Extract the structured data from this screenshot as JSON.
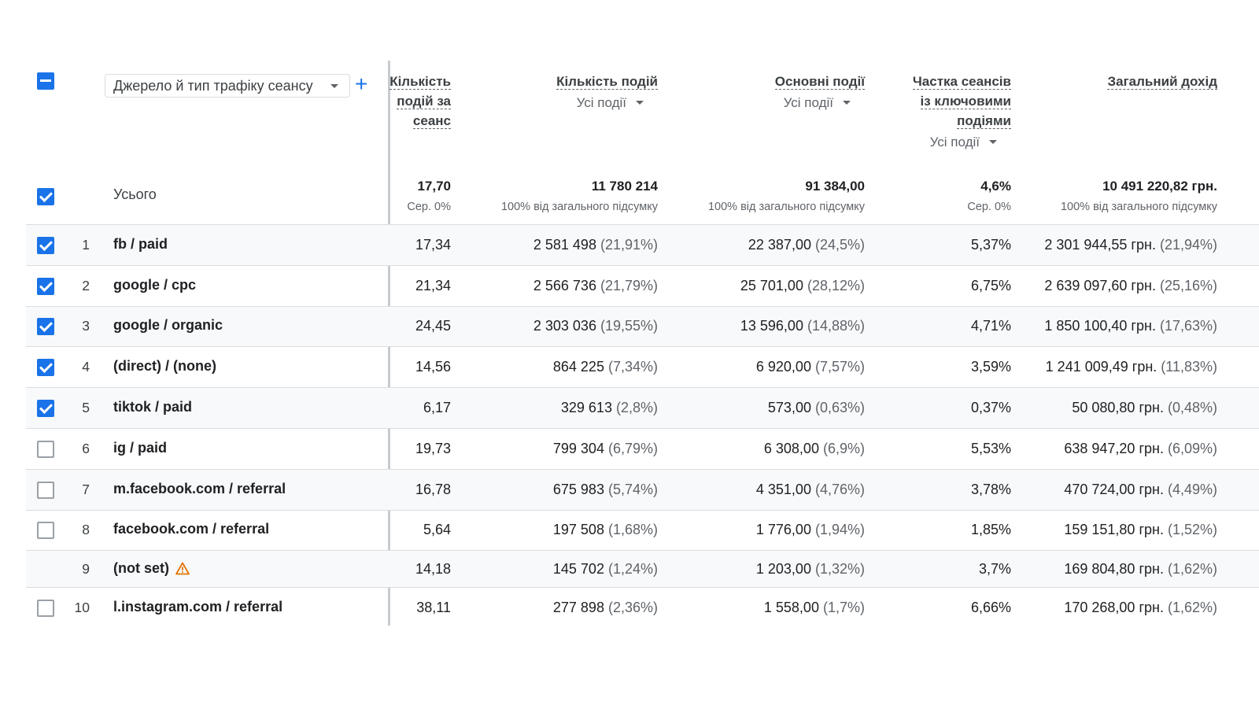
{
  "dimension": {
    "label": "Джерело й тип трафіку сеансу"
  },
  "columns": [
    {
      "title_lines": [
        "Кількість",
        "подій за",
        "сеанс"
      ],
      "sub": ""
    },
    {
      "title_lines": [
        "Кількість подій"
      ],
      "sub": "Усі події"
    },
    {
      "title_lines": [
        "Основні події"
      ],
      "sub": "Усі події"
    },
    {
      "title_lines": [
        "Частка сеансів",
        "із ключовими",
        "подіями"
      ],
      "sub": "Усі події"
    },
    {
      "title_lines": [
        "Загальний дохід"
      ],
      "sub": ""
    }
  ],
  "totals": {
    "label": "Усього",
    "values": [
      {
        "v": "17,70",
        "s": "Сер. 0%"
      },
      {
        "v": "11 780 214",
        "s": "100% від загального підсумку"
      },
      {
        "v": "91 384,00",
        "s": "100% від загального підсумку"
      },
      {
        "v": "4,6%",
        "s": "Сер. 0%"
      },
      {
        "v": "10 491 220,82 грн.",
        "s": "100% від загального підсумку"
      }
    ]
  },
  "rows": [
    {
      "n": "1",
      "name": "fb / paid",
      "checked": true,
      "warn": false,
      "c": [
        [
          "17,34",
          ""
        ],
        [
          "2 581 498",
          "(21,91%)"
        ],
        [
          "22 387,00",
          "(24,5%)"
        ],
        [
          "5,37%",
          ""
        ],
        [
          "2 301 944,55 грн.",
          "(21,94%)"
        ]
      ]
    },
    {
      "n": "2",
      "name": "google / cpc",
      "checked": true,
      "warn": false,
      "c": [
        [
          "21,34",
          ""
        ],
        [
          "2 566 736",
          "(21,79%)"
        ],
        [
          "25 701,00",
          "(28,12%)"
        ],
        [
          "6,75%",
          ""
        ],
        [
          "2 639 097,60 грн.",
          "(25,16%)"
        ]
      ]
    },
    {
      "n": "3",
      "name": "google / organic",
      "checked": true,
      "warn": false,
      "c": [
        [
          "24,45",
          ""
        ],
        [
          "2 303 036",
          "(19,55%)"
        ],
        [
          "13 596,00",
          "(14,88%)"
        ],
        [
          "4,71%",
          ""
        ],
        [
          "1 850 100,40 грн.",
          "(17,63%)"
        ]
      ]
    },
    {
      "n": "4",
      "name": "(direct) / (none)",
      "checked": true,
      "warn": false,
      "c": [
        [
          "14,56",
          ""
        ],
        [
          "864 225",
          "(7,34%)"
        ],
        [
          "6 920,00",
          "(7,57%)"
        ],
        [
          "3,59%",
          ""
        ],
        [
          "1 241 009,49 грн.",
          "(11,83%)"
        ]
      ]
    },
    {
      "n": "5",
      "name": "tiktok / paid",
      "checked": true,
      "warn": false,
      "c": [
        [
          "6,17",
          ""
        ],
        [
          "329 613",
          "(2,8%)"
        ],
        [
          "573,00",
          "(0,63%)"
        ],
        [
          "0,37%",
          ""
        ],
        [
          "50 080,80 грн.",
          "(0,48%)"
        ]
      ]
    },
    {
      "n": "6",
      "name": "ig / paid",
      "checked": false,
      "warn": false,
      "c": [
        [
          "19,73",
          ""
        ],
        [
          "799 304",
          "(6,79%)"
        ],
        [
          "6 308,00",
          "(6,9%)"
        ],
        [
          "5,53%",
          ""
        ],
        [
          "638 947,20 грн.",
          "(6,09%)"
        ]
      ]
    },
    {
      "n": "7",
      "name": "m.facebook.com / referral",
      "checked": false,
      "warn": false,
      "c": [
        [
          "16,78",
          ""
        ],
        [
          "675 983",
          "(5,74%)"
        ],
        [
          "4 351,00",
          "(4,76%)"
        ],
        [
          "3,78%",
          ""
        ],
        [
          "470 724,00 грн.",
          "(4,49%)"
        ]
      ]
    },
    {
      "n": "8",
      "name": "facebook.com / referral",
      "checked": false,
      "warn": false,
      "c": [
        [
          "5,64",
          ""
        ],
        [
          "197 508",
          "(1,68%)"
        ],
        [
          "1 776,00",
          "(1,94%)"
        ],
        [
          "1,85%",
          ""
        ],
        [
          "159 151,80 грн.",
          "(1,52%)"
        ]
      ]
    },
    {
      "n": "9",
      "name": "(not set)",
      "checked": null,
      "warn": true,
      "c": [
        [
          "14,18",
          ""
        ],
        [
          "145 702",
          "(1,24%)"
        ],
        [
          "1 203,00",
          "(1,32%)"
        ],
        [
          "3,7%",
          ""
        ],
        [
          "169 804,80 грн.",
          "(1,62%)"
        ]
      ]
    },
    {
      "n": "10",
      "name": "l.instagram.com / referral",
      "checked": false,
      "warn": false,
      "c": [
        [
          "38,11",
          ""
        ],
        [
          "277 898",
          "(2,36%)"
        ],
        [
          "1 558,00",
          "(1,7%)"
        ],
        [
          "6,66%",
          ""
        ],
        [
          "170 268,00 грн.",
          "(1,62%)"
        ]
      ]
    }
  ]
}
